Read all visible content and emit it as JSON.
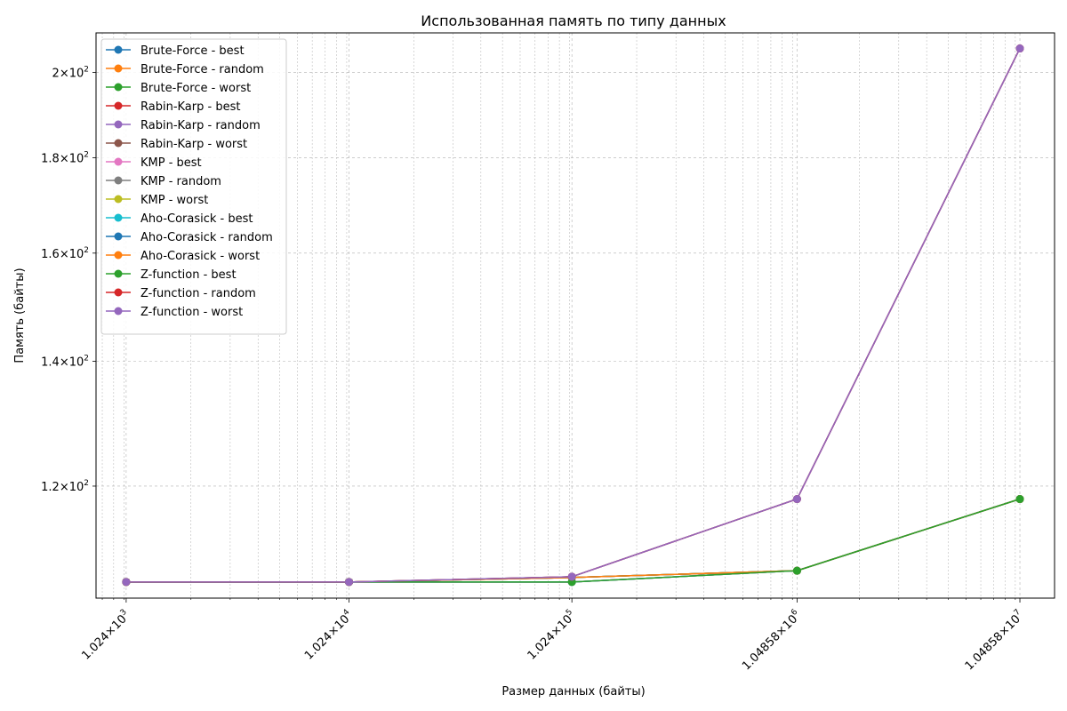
{
  "chart_data": {
    "type": "line",
    "title": "Использованная память по типу данных",
    "xlabel": "Размер данных (байты)",
    "ylabel": "Память (байты)",
    "x_scale": "log",
    "y_scale": "log",
    "grid": true,
    "legend_position": "top-left",
    "x": [
      1024,
      10240,
      102400,
      1048580,
      10485800
    ],
    "xlim": [
      750,
      15000000
    ],
    "ylim": [
      104.5,
      210
    ],
    "x_tick_labels": [
      {
        "value": 1024,
        "mantissa": "1.024",
        "exp": "3"
      },
      {
        "value": 10240,
        "mantissa": "1.024",
        "exp": "4"
      },
      {
        "value": 102400,
        "mantissa": "1.024",
        "exp": "5"
      },
      {
        "value": 1048580,
        "mantissa": "1.04858",
        "exp": "6"
      },
      {
        "value": 10485800,
        "mantissa": "1.04858",
        "exp": "7"
      }
    ],
    "y_tick_labels": [
      {
        "value": 120,
        "mantissa": "1.2",
        "exp": "2"
      },
      {
        "value": 140,
        "mantissa": "1.4",
        "exp": "2"
      },
      {
        "value": 160,
        "mantissa": "1.6",
        "exp": "2"
      },
      {
        "value": 180,
        "mantissa": "1.8",
        "exp": "2"
      },
      {
        "value": 200,
        "mantissa": "2",
        "exp": "2"
      }
    ],
    "series": [
      {
        "name": "Brute-Force - best",
        "color": "#1f77b4",
        "values": [
          106.6,
          106.6,
          106.6,
          108.1,
          118.1
        ]
      },
      {
        "name": "Brute-Force - random",
        "color": "#ff7f0e",
        "values": [
          106.6,
          106.6,
          107.2,
          108.1,
          118.1
        ]
      },
      {
        "name": "Brute-Force - worst",
        "color": "#2ca02c",
        "values": [
          106.6,
          106.6,
          107.2,
          108.1,
          118.1
        ]
      },
      {
        "name": "Rabin-Karp - best",
        "color": "#d62728",
        "values": [
          106.6,
          106.6,
          106.6,
          108.1,
          118.1
        ]
      },
      {
        "name": "Rabin-Karp - random",
        "color": "#9467bd",
        "values": [
          106.6,
          106.6,
          107.3,
          118.1,
          206.0
        ]
      },
      {
        "name": "Rabin-Karp - worst",
        "color": "#8c564b",
        "values": [
          106.6,
          106.6,
          107.3,
          118.1,
          206.0
        ]
      },
      {
        "name": "KMP - best",
        "color": "#e377c2",
        "values": [
          106.6,
          106.6,
          106.6,
          108.1,
          118.1
        ]
      },
      {
        "name": "KMP - random",
        "color": "#7f7f7f",
        "values": [
          106.6,
          106.6,
          107.2,
          108.1,
          118.1
        ]
      },
      {
        "name": "KMP - worst",
        "color": "#bcbd22",
        "values": [
          106.6,
          106.6,
          107.2,
          108.1,
          118.1
        ]
      },
      {
        "name": "Aho-Corasick - best",
        "color": "#17becf",
        "values": [
          106.6,
          106.6,
          106.6,
          108.1,
          118.1
        ]
      },
      {
        "name": "Aho-Corasick - random",
        "color": "#1f77b4",
        "values": [
          106.6,
          106.6,
          107.2,
          108.1,
          118.1
        ]
      },
      {
        "name": "Aho-Corasick - worst",
        "color": "#ff7f0e",
        "values": [
          106.6,
          106.6,
          107.2,
          108.1,
          118.1
        ]
      },
      {
        "name": "Z-function - best",
        "color": "#2ca02c",
        "values": [
          106.6,
          106.6,
          106.6,
          108.1,
          118.1
        ]
      },
      {
        "name": "Z-function - random",
        "color": "#d62728",
        "values": [
          106.6,
          106.6,
          107.3,
          118.1,
          206.0
        ]
      },
      {
        "name": "Z-function - worst",
        "color": "#9467bd",
        "values": [
          106.6,
          106.6,
          107.3,
          118.1,
          206.0
        ]
      }
    ]
  }
}
